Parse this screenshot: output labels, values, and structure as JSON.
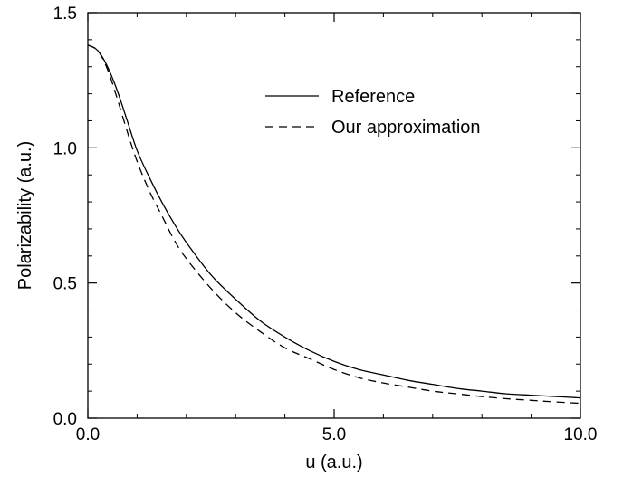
{
  "chart_data": {
    "type": "line",
    "title": "",
    "xlabel": "u (a.u.)",
    "ylabel": "Polarizability (a.u.)",
    "xlim": [
      0,
      10
    ],
    "ylim": [
      0,
      1.5
    ],
    "grid": false,
    "legend_position": "top-right",
    "x_ticks": [
      0,
      5,
      10
    ],
    "x_tick_labels": [
      "0.0",
      "5.0",
      "10.0"
    ],
    "y_ticks": [
      0,
      0.5,
      1.0,
      1.5
    ],
    "y_tick_labels": [
      "0.0",
      "0.5",
      "1.0",
      "1.5"
    ],
    "series": [
      {
        "name": "Reference",
        "style": "solid",
        "color": "#000000",
        "x": [
          0,
          0.2,
          0.4,
          0.6,
          0.8,
          1.0,
          1.25,
          1.5,
          1.75,
          2.0,
          2.5,
          3.0,
          3.5,
          4.0,
          4.5,
          5.0,
          5.5,
          6.0,
          6.5,
          7.0,
          7.5,
          8.0,
          8.5,
          9.0,
          9.5,
          10.0
        ],
        "y": [
          1.38,
          1.36,
          1.3,
          1.21,
          1.1,
          0.99,
          0.89,
          0.8,
          0.72,
          0.65,
          0.53,
          0.44,
          0.36,
          0.3,
          0.25,
          0.21,
          0.18,
          0.16,
          0.14,
          0.125,
          0.11,
          0.1,
          0.09,
          0.085,
          0.08,
          0.075
        ]
      },
      {
        "name": "Our approximation",
        "style": "dashed",
        "color": "#000000",
        "x": [
          0,
          0.2,
          0.4,
          0.6,
          0.8,
          1.0,
          1.25,
          1.5,
          1.75,
          2.0,
          2.5,
          3.0,
          3.5,
          4.0,
          4.5,
          5.0,
          5.5,
          6.0,
          6.5,
          7.0,
          7.5,
          8.0,
          8.5,
          9.0,
          9.5,
          10.0
        ],
        "y": [
          1.38,
          1.36,
          1.29,
          1.18,
          1.06,
          0.95,
          0.84,
          0.75,
          0.66,
          0.59,
          0.48,
          0.39,
          0.32,
          0.26,
          0.22,
          0.18,
          0.15,
          0.13,
          0.115,
          0.1,
          0.09,
          0.08,
          0.072,
          0.066,
          0.06,
          0.055
        ]
      }
    ]
  }
}
